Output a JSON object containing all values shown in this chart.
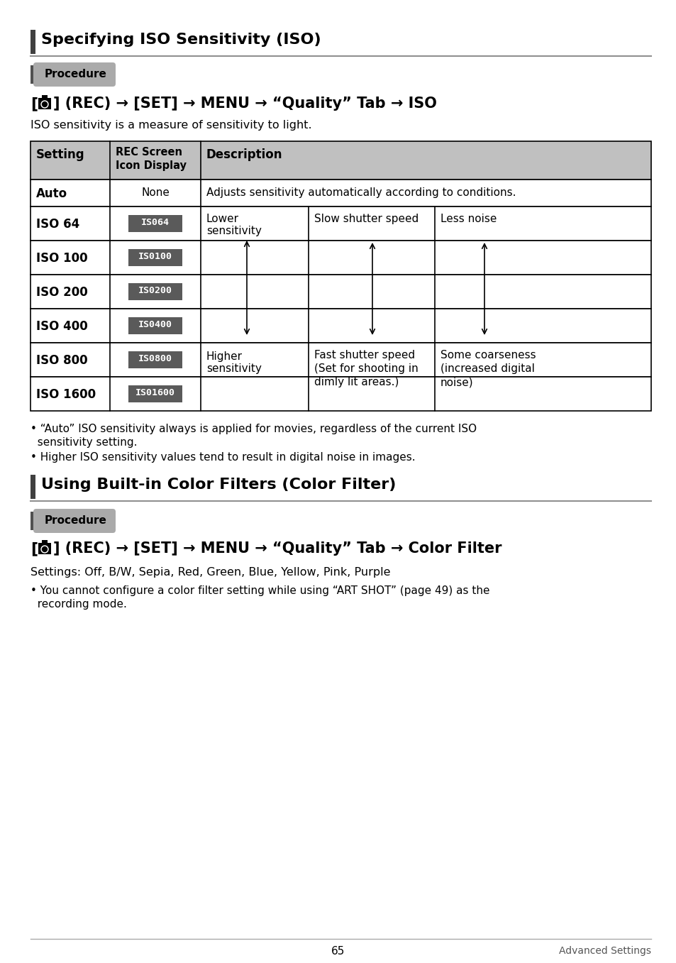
{
  "page_bg": "#ffffff",
  "section1_title": "Specifying ISO Sensitivity (ISO)",
  "section2_title": "Using Built-in Color Filters (Color Filter)",
  "procedure_label": "Procedure",
  "rec_line_text1": "] (REC) → [SET] → MENU → “Quality” Tab → ISO",
  "rec_line_text2": "] (REC) → [SET] → MENU → “Quality” Tab → Color Filter",
  "iso_desc": "ISO sensitivity is a measure of sensitivity to light.",
  "iso_badge_bg": "#5a5a5a",
  "iso_badge_fg": "#ffffff",
  "iso_rows": [
    [
      "ISO 64",
      "IS064"
    ],
    [
      "ISO 100",
      "IS0100"
    ],
    [
      "ISO 200",
      "IS0200"
    ],
    [
      "ISO 400",
      "IS0400"
    ],
    [
      "ISO 800",
      "IS0800"
    ],
    [
      "ISO 1600",
      "IS01600"
    ]
  ],
  "bullet1a": "• “Auto” ISO sensitivity always is applied for movies, regardless of the current ISO",
  "bullet1b": "  sensitivity setting.",
  "bullet2": "• Higher ISO sensitivity values tend to result in digital noise in images.",
  "settings_line": "Settings: Off, B/W, Sepia, Red, Green, Blue, Yellow, Pink, Purple",
  "bullet3a": "• You cannot configure a color filter setting while using “ART SHOT” (page 49) as the",
  "bullet3b": "  recording mode.",
  "footer_page": "65",
  "footer_right": "Advanced Settings"
}
